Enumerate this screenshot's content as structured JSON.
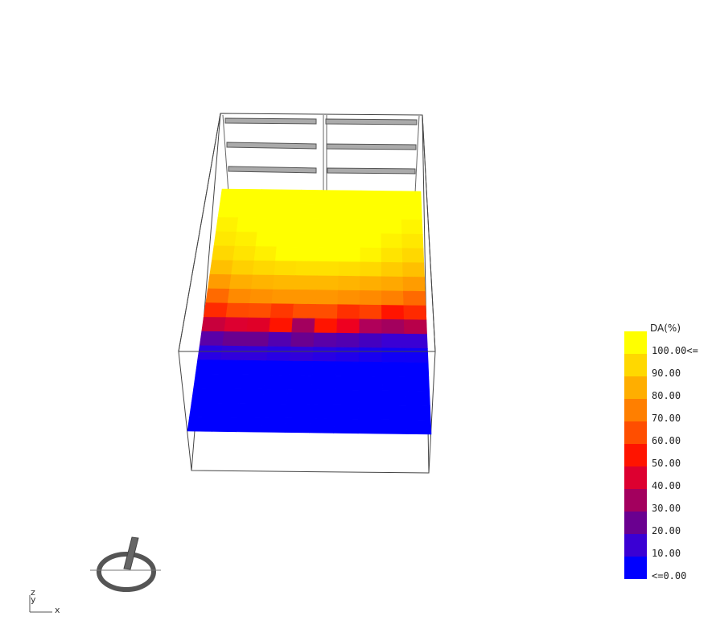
{
  "legend": {
    "title": "DA(%)",
    "bands": [
      {
        "label": "100.00<=",
        "color": "#ffff00"
      },
      {
        "label": "90.00",
        "color": "#ffd800"
      },
      {
        "label": "80.00",
        "color": "#ffae00"
      },
      {
        "label": "70.00",
        "color": "#ff7f00"
      },
      {
        "label": "60.00",
        "color": "#ff4e00"
      },
      {
        "label": "50.00",
        "color": "#ff1400"
      },
      {
        "label": "40.00",
        "color": "#dd0030"
      },
      {
        "label": "30.00",
        "color": "#a3005e"
      },
      {
        "label": "20.00",
        "color": "#6a0090"
      },
      {
        "label": "10.00",
        "color": "#3a00d4"
      },
      {
        "label": "<=0.00",
        "color": "#0000ff"
      }
    ]
  },
  "axis": {
    "y_label": "y",
    "z_label": "z",
    "x_label": "x"
  },
  "grid_rows": [
    [
      "#ffff00",
      "#ffff00",
      "#ffff00",
      "#ffff00",
      "#ffff00",
      "#ffff00",
      "#ffff00",
      "#ffff00",
      "#ffff00",
      "#ffff00"
    ],
    [
      "#ffff00",
      "#ffff00",
      "#ffff00",
      "#ffff00",
      "#ffff00",
      "#ffff00",
      "#ffff00",
      "#ffff00",
      "#ffff00",
      "#ffff00"
    ],
    [
      "#fff200",
      "#ffff00",
      "#ffff00",
      "#ffff00",
      "#ffff00",
      "#ffff00",
      "#ffff00",
      "#ffff00",
      "#ffff00",
      "#fff500"
    ],
    [
      "#ffe800",
      "#fff000",
      "#ffff00",
      "#ffff00",
      "#ffff00",
      "#ffff00",
      "#ffff00",
      "#ffff00",
      "#fff200",
      "#ffe800"
    ],
    [
      "#ffd800",
      "#ffe400",
      "#fff000",
      "#ffff00",
      "#ffff00",
      "#ffff00",
      "#ffff00",
      "#fff400",
      "#ffe400",
      "#ffd800"
    ],
    [
      "#ffc000",
      "#ffd000",
      "#ffd800",
      "#ffdd00",
      "#ffe000",
      "#ffe000",
      "#ffdd00",
      "#ffd800",
      "#ffcc00",
      "#ffc000"
    ],
    [
      "#ff9c00",
      "#ffae00",
      "#ffb400",
      "#ffb800",
      "#ffb800",
      "#ffb800",
      "#ffb400",
      "#ffae00",
      "#ffa800",
      "#ff9c00"
    ],
    [
      "#ff6a00",
      "#ff8a00",
      "#ff9000",
      "#ff9600",
      "#ff9600",
      "#ff9600",
      "#ff9000",
      "#ff8a00",
      "#ff8000",
      "#ff6a00"
    ],
    [
      "#ff2a00",
      "#ff4a00",
      "#ff4e00",
      "#ff3800",
      "#ff4e00",
      "#ff4e00",
      "#ff3000",
      "#ff4000",
      "#ff1400",
      "#ff2a00"
    ],
    [
      "#c8003c",
      "#dd0030",
      "#e00028",
      "#ff1400",
      "#a3005e",
      "#ff1400",
      "#ee0020",
      "#b0005a",
      "#a3005e",
      "#b8004a"
    ],
    [
      "#5a00a8",
      "#6a0090",
      "#6a0090",
      "#5200b0",
      "#6a0090",
      "#5a00a8",
      "#5200b0",
      "#4400c0",
      "#3a00d4",
      "#3a00d4"
    ],
    [
      "#2800e4",
      "#3000dc",
      "#3000dc",
      "#2800e4",
      "#3000dc",
      "#2800e4",
      "#2000ea",
      "#1800f0",
      "#1000f6",
      "#1000f6"
    ],
    [
      "#0000ff",
      "#0000ff",
      "#0000ff",
      "#0000ff",
      "#0000ff",
      "#0000ff",
      "#0000ff",
      "#0000ff",
      "#0000ff",
      "#0000ff"
    ],
    [
      "#0000ff",
      "#0000ff",
      "#0000ff",
      "#0000ff",
      "#0000ff",
      "#0000ff",
      "#0000ff",
      "#0000ff",
      "#0000ff",
      "#0000ff"
    ],
    [
      "#0000ff",
      "#0000ff",
      "#0000ff",
      "#0000ff",
      "#0000ff",
      "#0000ff",
      "#0000ff",
      "#0000ff",
      "#0000ff",
      "#0000ff"
    ],
    [
      "#0000ff",
      "#0000ff",
      "#0000ff",
      "#0000ff",
      "#0000ff",
      "#0000ff",
      "#0000ff",
      "#0000ff",
      "#0000ff",
      "#0000ff"
    ],
    [
      "#0000ff",
      "#0000ff",
      "#0000ff",
      "#0000ff",
      "#0000ff",
      "#0000ff",
      "#0000ff",
      "#0000ff",
      "#0000ff",
      "#0000ff"
    ]
  ]
}
